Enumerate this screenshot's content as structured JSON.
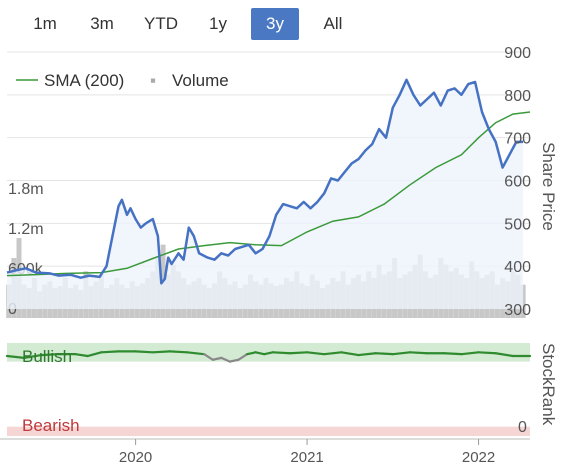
{
  "range_tabs": [
    {
      "label": "1m",
      "active": false
    },
    {
      "label": "3m",
      "active": false
    },
    {
      "label": "YTD",
      "active": false
    },
    {
      "label": "1y",
      "active": false
    },
    {
      "label": "3y",
      "active": true
    },
    {
      "label": "All",
      "active": false
    }
  ],
  "colors": {
    "price": "#4672c4",
    "sma": "#3a9a3a",
    "volume": "#c8c8c8",
    "bullish_band": "#d3ead3",
    "bearish_band": "#f6d5d5",
    "active_tab": "#4a78c2",
    "stockrank": "#2e8b2e"
  },
  "chart_data": [
    {
      "type": "line",
      "title": "",
      "ylabel": "Share Price",
      "ylim": [
        300,
        900
      ],
      "yticks": [
        300,
        400,
        500,
        600,
        700,
        800,
        900
      ],
      "ytick_labels": [
        "300",
        "400",
        "500",
        "600",
        "700",
        "800",
        "900"
      ],
      "xlim": [
        2019.25,
        2022.3
      ],
      "x_year_ticks": [
        2020,
        2021,
        2022
      ],
      "x_year_labels": [
        "2020",
        "2021",
        "2022"
      ],
      "legend": [
        "SMA (200)",
        "Volume"
      ],
      "series": [
        {
          "name": "Share Price",
          "x": [
            2019.25,
            2019.3,
            2019.36,
            2019.42,
            2019.5,
            2019.55,
            2019.62,
            2019.68,
            2019.73,
            2019.79,
            2019.83,
            2019.86,
            2019.9,
            2019.92,
            2019.95,
            2019.97,
            2020.0,
            2020.03,
            2020.06,
            2020.1,
            2020.13,
            2020.15,
            2020.17,
            2020.19,
            2020.21,
            2020.25,
            2020.28,
            2020.31,
            2020.34,
            2020.37,
            2020.42,
            2020.46,
            2020.5,
            2020.54,
            2020.58,
            2020.62,
            2020.66,
            2020.7,
            2020.74,
            2020.78,
            2020.82,
            2020.86,
            2020.9,
            2020.94,
            2020.98,
            2021.02,
            2021.06,
            2021.1,
            2021.14,
            2021.18,
            2021.22,
            2021.26,
            2021.3,
            2021.34,
            2021.38,
            2021.42,
            2021.46,
            2021.5,
            2021.54,
            2021.58,
            2021.62,
            2021.66,
            2021.7,
            2021.74,
            2021.78,
            2021.82,
            2021.86,
            2021.9,
            2021.94,
            2021.98,
            2022.02,
            2022.06,
            2022.1,
            2022.14,
            2022.18,
            2022.22,
            2022.26
          ],
          "values": [
            385,
            390,
            395,
            385,
            383,
            378,
            380,
            373,
            378,
            375,
            400,
            460,
            540,
            555,
            520,
            535,
            510,
            490,
            500,
            510,
            470,
            360,
            370,
            420,
            405,
            430,
            415,
            490,
            470,
            430,
            420,
            415,
            430,
            425,
            440,
            445,
            450,
            430,
            440,
            470,
            520,
            545,
            540,
            535,
            550,
            535,
            550,
            570,
            605,
            600,
            620,
            640,
            650,
            670,
            685,
            720,
            700,
            770,
            800,
            835,
            800,
            775,
            790,
            805,
            775,
            810,
            815,
            800,
            825,
            830,
            760,
            720,
            690,
            630,
            660,
            690,
            690
          ]
        },
        {
          "name": "SMA (200)",
          "x": [
            2019.25,
            2019.4,
            2019.6,
            2019.8,
            2019.95,
            2020.1,
            2020.25,
            2020.4,
            2020.55,
            2020.7,
            2020.85,
            2021.0,
            2021.15,
            2021.3,
            2021.45,
            2021.6,
            2021.75,
            2021.9,
            2022.0,
            2022.1,
            2022.2,
            2022.3
          ],
          "values": [
            378,
            380,
            383,
            385,
            395,
            418,
            440,
            448,
            455,
            450,
            448,
            480,
            505,
            515,
            545,
            590,
            630,
            660,
            700,
            735,
            755,
            760
          ]
        }
      ]
    },
    {
      "type": "bar",
      "title": "",
      "ylabel": "",
      "ylim": [
        0,
        2400000
      ],
      "yticks": [
        0,
        600000,
        1200000,
        1800000
      ],
      "ytick_labels": [
        "0",
        "600k",
        "1.2m",
        "1.8m"
      ],
      "series": [
        {
          "name": "Volume",
          "x": [
            2019.26,
            2019.29,
            2019.32,
            2019.35,
            2019.38,
            2019.41,
            2019.44,
            2019.47,
            2019.5,
            2019.53,
            2019.56,
            2019.59,
            2019.62,
            2019.65,
            2019.68,
            2019.71,
            2019.74,
            2019.77,
            2019.8,
            2019.83,
            2019.86,
            2019.89,
            2019.92,
            2019.95,
            2019.98,
            2020.01,
            2020.04,
            2020.07,
            2020.1,
            2020.13,
            2020.16,
            2020.19,
            2020.22,
            2020.25,
            2020.28,
            2020.31,
            2020.34,
            2020.37,
            2020.4,
            2020.43,
            2020.46,
            2020.49,
            2020.52,
            2020.55,
            2020.58,
            2020.61,
            2020.64,
            2020.67,
            2020.7,
            2020.73,
            2020.76,
            2020.79,
            2020.82,
            2020.85,
            2020.88,
            2020.91,
            2020.94,
            2020.97,
            2021.0,
            2021.03,
            2021.06,
            2021.09,
            2021.12,
            2021.15,
            2021.18,
            2021.21,
            2021.24,
            2021.27,
            2021.3,
            2021.33,
            2021.36,
            2021.39,
            2021.42,
            2021.45,
            2021.48,
            2021.51,
            2021.54,
            2021.57,
            2021.6,
            2021.63,
            2021.66,
            2021.69,
            2021.72,
            2021.75,
            2021.78,
            2021.81,
            2021.84,
            2021.87,
            2021.9,
            2021.93,
            2021.96,
            2021.99,
            2022.02,
            2022.05,
            2022.08,
            2022.11,
            2022.14,
            2022.17,
            2022.2,
            2022.23,
            2022.26
          ],
          "values": [
            500000,
            900000,
            1200000,
            500000,
            450000,
            600000,
            400000,
            500000,
            550000,
            450000,
            480000,
            600000,
            450000,
            500000,
            420000,
            700000,
            480000,
            550000,
            650000,
            450000,
            500000,
            600000,
            500000,
            450000,
            550000,
            480000,
            520000,
            600000,
            700000,
            900000,
            1100000,
            650000,
            800000,
            700000,
            600000,
            500000,
            550000,
            600000,
            500000,
            450000,
            520000,
            700000,
            600000,
            500000,
            550000,
            450000,
            500000,
            650000,
            550000,
            500000,
            600000,
            520000,
            480000,
            500000,
            600000,
            550000,
            700000,
            520000,
            480000,
            650000,
            560000,
            450000,
            500000,
            600000,
            550000,
            700000,
            500000,
            600000,
            650000,
            550000,
            700000,
            600000,
            800000,
            650000,
            700000,
            900000,
            600000,
            650000,
            700000,
            800000,
            950000,
            700000,
            600000,
            650000,
            900000,
            800000,
            700000,
            750000,
            650000,
            600000,
            850000,
            700000,
            600000,
            650000,
            700000,
            500000,
            600000,
            550000,
            700000,
            650000,
            500000
          ]
        }
      ]
    },
    {
      "type": "line",
      "title": "",
      "ylabel": "StockRank",
      "ylim": [
        0,
        100
      ],
      "ytick_labels": [
        "0"
      ],
      "bands": [
        {
          "label": "Bullish",
          "range": [
            80,
            100
          ]
        },
        {
          "label": "Bearish",
          "range": [
            0,
            10
          ]
        }
      ],
      "series": [
        {
          "name": "StockRank",
          "x": [
            2019.25,
            2019.35,
            2019.45,
            2019.55,
            2019.65,
            2019.72,
            2019.8,
            2019.9,
            2020.0,
            2020.1,
            2020.2,
            2020.3,
            2020.4,
            2020.45,
            2020.5,
            2020.55,
            2020.6,
            2020.65,
            2020.7,
            2020.75,
            2020.8,
            2020.9,
            2021.0,
            2021.1,
            2021.2,
            2021.3,
            2021.4,
            2021.5,
            2021.6,
            2021.7,
            2021.8,
            2021.9,
            2022.0,
            2022.1,
            2022.2,
            2022.3
          ],
          "values": [
            86,
            84,
            87,
            88,
            88,
            86,
            90,
            91,
            91,
            90,
            91,
            90,
            88,
            82,
            84,
            80,
            82,
            88,
            90,
            88,
            90,
            89,
            90,
            88,
            90,
            87,
            89,
            88,
            90,
            89,
            89,
            88,
            90,
            89,
            86,
            86
          ]
        }
      ]
    }
  ],
  "legend": {
    "sma_label": "SMA (200)",
    "volume_label": "Volume",
    "volume_marker": "▪"
  },
  "axes": {
    "price_title": "Share Price",
    "stockrank_title": "StockRank",
    "bullish_label": "Bullish",
    "bearish_label": "Bearish",
    "stockrank_zero": "0"
  }
}
